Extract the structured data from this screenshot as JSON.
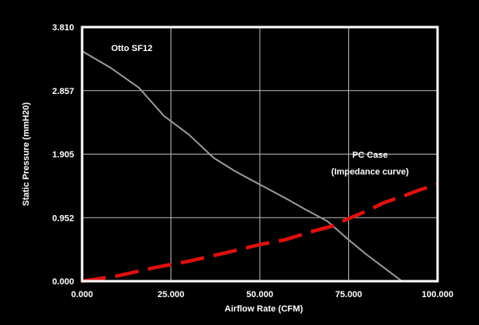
{
  "chart_data": {
    "type": "line",
    "xlabel": "Airflow Rate (CFM)",
    "ylabel": "Static Pressure (mmH20)",
    "xlim": [
      0,
      100
    ],
    "ylim": [
      0,
      3.81
    ],
    "x_ticks": [
      0,
      25,
      50,
      75,
      100
    ],
    "x_tick_labels": [
      "0.000",
      "25.000",
      "50.000",
      "75.000",
      "100.000"
    ],
    "y_ticks": [
      0,
      0.952,
      1.905,
      2.857,
      3.81
    ],
    "y_tick_labels": [
      "0.000",
      "0.952",
      "1.905",
      "2.857",
      "3.810"
    ],
    "grid": true,
    "series": [
      {
        "name": "Otto SF12",
        "color": "#999999",
        "style": "solid",
        "points": [
          [
            0,
            3.45
          ],
          [
            8,
            3.2
          ],
          [
            16,
            2.9
          ],
          [
            23,
            2.48
          ],
          [
            30,
            2.2
          ],
          [
            37,
            1.85
          ],
          [
            43,
            1.65
          ],
          [
            50,
            1.45
          ],
          [
            57,
            1.25
          ],
          [
            63,
            1.07
          ],
          [
            69,
            0.9
          ],
          [
            75,
            0.62
          ],
          [
            80,
            0.4
          ],
          [
            85,
            0.2
          ],
          [
            90,
            0.0
          ]
        ]
      },
      {
        "name": "",
        "color": "#dd1111",
        "style": "dashed",
        "points": [
          [
            0,
            0.0
          ],
          [
            10,
            0.08
          ],
          [
            20,
            0.2
          ],
          [
            30,
            0.3
          ],
          [
            40,
            0.42
          ],
          [
            50,
            0.55
          ],
          [
            57,
            0.62
          ],
          [
            65,
            0.75
          ],
          [
            70,
            0.82
          ],
          [
            75,
            0.94
          ],
          [
            80,
            1.05
          ],
          [
            85,
            1.18
          ],
          [
            90,
            1.27
          ],
          [
            95,
            1.37
          ],
          [
            100,
            1.45
          ]
        ]
      }
    ],
    "annotations": [
      {
        "text": "Otto SF12",
        "x": 14,
        "y": 3.45
      },
      {
        "text": "PC Case",
        "x": 81,
        "y": 1.85
      },
      {
        "text": "(Impedance curve)",
        "x": 81,
        "y": 1.6
      }
    ]
  }
}
